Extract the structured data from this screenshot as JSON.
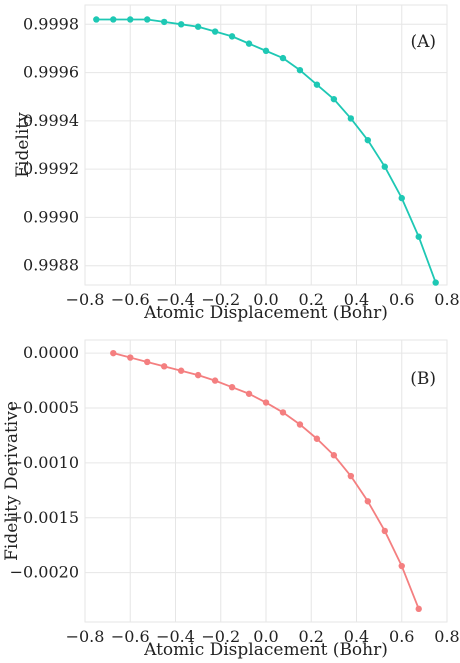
{
  "chart_data": [
    {
      "type": "line",
      "panel_label": "(A)",
      "xlabel": "Atomic Displacement (Bohr)",
      "ylabel": "Fidelity",
      "xlim": [
        -0.8,
        0.8
      ],
      "ylim": [
        0.99872,
        0.99988
      ],
      "xticks": [
        -0.8,
        -0.6,
        -0.4,
        -0.2,
        0.0,
        0.2,
        0.4,
        0.6,
        0.8
      ],
      "xtick_labels": [
        "−0.8",
        "−0.6",
        "−0.4",
        "−0.2",
        "0.0",
        "0.2",
        "0.4",
        "0.6",
        "0.8"
      ],
      "yticks": [
        0.9988,
        0.999,
        0.9992,
        0.9994,
        0.9996,
        0.9998
      ],
      "ytick_labels": [
        "0.9988",
        "0.9990",
        "0.9992",
        "0.9994",
        "0.9996",
        "0.9998"
      ],
      "grid": true,
      "color": "#1ec8b4",
      "series": [
        {
          "x": [
            -0.75,
            -0.675,
            -0.6,
            -0.525,
            -0.45,
            -0.375,
            -0.3,
            -0.225,
            -0.15,
            -0.075,
            0.0,
            0.075,
            0.15,
            0.225,
            0.3,
            0.375,
            0.45,
            0.525,
            0.6,
            0.675,
            0.75
          ],
          "y": [
            0.99982,
            0.99982,
            0.99982,
            0.99982,
            0.99981,
            0.9998,
            0.99979,
            0.99977,
            0.99975,
            0.99972,
            0.99969,
            0.99966,
            0.99961,
            0.99955,
            0.99949,
            0.99941,
            0.99932,
            0.99921,
            0.99908,
            0.99892,
            0.99873
          ]
        }
      ]
    },
    {
      "type": "line",
      "panel_label": "(B)",
      "xlabel": "Atomic Displacement (Bohr)",
      "ylabel": "Fidelity Derivative",
      "xlim": [
        -0.8,
        0.8
      ],
      "ylim": [
        -0.00245,
        0.00012
      ],
      "xticks": [
        -0.8,
        -0.6,
        -0.4,
        -0.2,
        0.0,
        0.2,
        0.4,
        0.6,
        0.8
      ],
      "xtick_labels": [
        "−0.8",
        "−0.6",
        "−0.4",
        "−0.2",
        "0.0",
        "0.2",
        "0.4",
        "0.6",
        "0.8"
      ],
      "yticks": [
        0.0,
        -0.0005,
        -0.001,
        -0.0015,
        -0.002
      ],
      "ytick_labels": [
        "0.0000",
        "−0.0005",
        "−0.0010",
        "−0.0015",
        "−0.0020"
      ],
      "grid": true,
      "color": "#f47f80",
      "series": [
        {
          "x": [
            -0.675,
            -0.6,
            -0.525,
            -0.45,
            -0.375,
            -0.3,
            -0.225,
            -0.15,
            -0.075,
            0.0,
            0.075,
            0.15,
            0.225,
            0.3,
            0.375,
            0.45,
            0.525,
            0.6,
            0.675
          ],
          "y": [
            0.0,
            -4e-05,
            -8e-05,
            -0.00012,
            -0.00016,
            -0.0002,
            -0.00025,
            -0.00031,
            -0.00037,
            -0.00045,
            -0.00054,
            -0.00065,
            -0.00078,
            -0.00093,
            -0.00112,
            -0.00135,
            -0.00162,
            -0.00194,
            -0.00233
          ]
        }
      ]
    }
  ]
}
